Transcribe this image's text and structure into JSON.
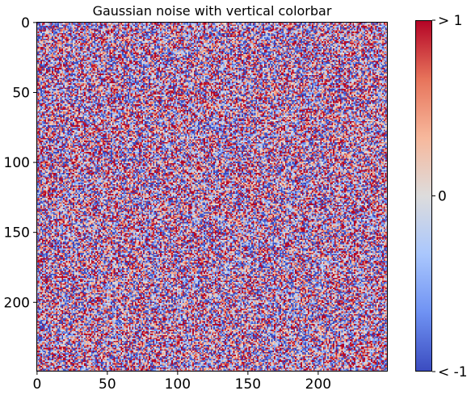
{
  "chart_data": {
    "type": "heatmap",
    "title": "Gaussian noise with vertical colorbar",
    "rows": 250,
    "cols": 250,
    "distribution": "gaussian",
    "mean": 0,
    "std": 1,
    "x_ticks": [
      0,
      50,
      100,
      150,
      200
    ],
    "y_ticks": [
      0,
      50,
      100,
      150,
      200
    ],
    "xlim": [
      -0.5,
      249.5
    ],
    "ylim": [
      249.5,
      -0.5
    ],
    "colormap": "coolwarm",
    "color_range": [
      -1,
      1
    ],
    "colormap_stops": [
      "#3b4cc0",
      "#6f92f3",
      "#aac7fd",
      "#dddcdc",
      "#f7b89c",
      "#e7745b",
      "#b40426"
    ],
    "colorbar": {
      "orientation": "vertical",
      "ticks": [
        {
          "value": 1,
          "label": "> 1"
        },
        {
          "value": 0,
          "label": "0"
        },
        {
          "value": -1,
          "label": "< -1"
        }
      ]
    }
  }
}
